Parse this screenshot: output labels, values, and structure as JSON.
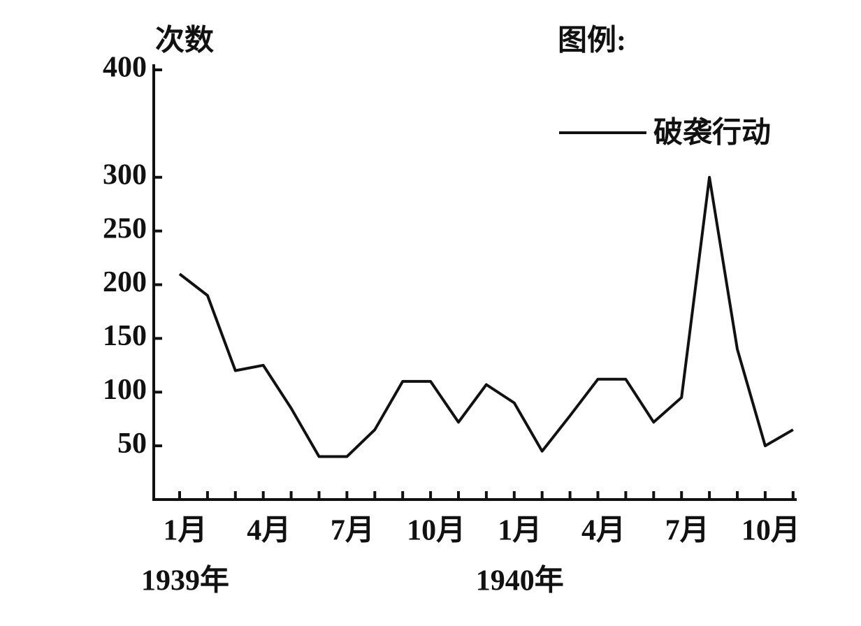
{
  "chart_data": {
    "type": "line",
    "y_label": "次数",
    "legend_title": "图例:",
    "categories": [
      "1月",
      null,
      null,
      "4月",
      null,
      null,
      "7月",
      null,
      null,
      "10月",
      null,
      null,
      "1月",
      null,
      null,
      "4月",
      null,
      null,
      "7月",
      null,
      null,
      "10月",
      null
    ],
    "year_labels": [
      "1939年",
      "1940年"
    ],
    "series": [
      {
        "name": "破袭行动",
        "color": "#111111",
        "values": [
          210,
          190,
          120,
          125,
          85,
          40,
          40,
          65,
          110,
          110,
          72,
          107,
          90,
          45,
          78,
          112,
          112,
          72,
          95,
          300,
          140,
          50,
          65
        ]
      }
    ],
    "ylim": [
      0,
      400
    ],
    "yticks": [
      50,
      100,
      150,
      200,
      250,
      300,
      400
    ]
  }
}
